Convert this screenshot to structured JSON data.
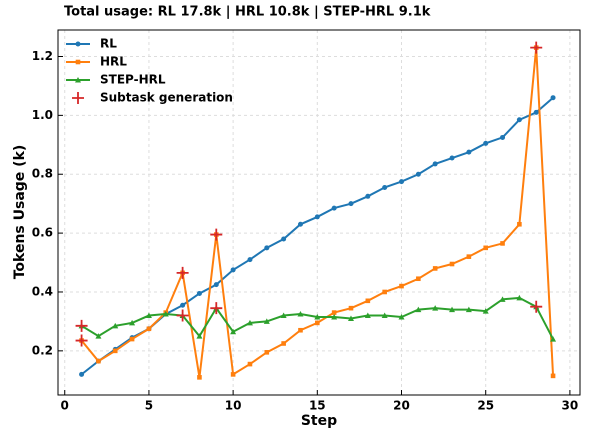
{
  "chart_data": {
    "type": "line",
    "title": "Total usage: RL 17.8k | HRL 10.8k | STEP-HRL 9.1k",
    "x_label": "Step",
    "y_label": "Tokens Usage (k)",
    "x": [
      1,
      2,
      3,
      4,
      5,
      6,
      7,
      8,
      9,
      10,
      11,
      12,
      13,
      14,
      15,
      16,
      17,
      18,
      19,
      20,
      21,
      22,
      23,
      24,
      25,
      26,
      27,
      28,
      29
    ],
    "series": [
      {
        "name": "RL",
        "color": "#1f77b4",
        "marker": "circle",
        "line": true,
        "values": [
          0.12,
          0.165,
          0.205,
          0.245,
          0.275,
          0.325,
          0.355,
          0.395,
          0.425,
          0.475,
          0.51,
          0.55,
          0.58,
          0.63,
          0.655,
          0.685,
          0.7,
          0.725,
          0.755,
          0.775,
          0.8,
          0.835,
          0.855,
          0.875,
          0.905,
          0.925,
          0.985,
          1.01,
          1.06
        ]
      },
      {
        "name": "HRL",
        "color": "#ff7f0e",
        "marker": "square",
        "line": true,
        "values": [
          0.235,
          0.165,
          0.2,
          0.24,
          0.275,
          0.33,
          0.465,
          0.11,
          0.595,
          0.12,
          0.155,
          0.195,
          0.225,
          0.27,
          0.295,
          0.33,
          0.345,
          0.37,
          0.4,
          0.42,
          0.445,
          0.48,
          0.495,
          0.52,
          0.55,
          0.565,
          0.63,
          1.23,
          0.115
        ]
      },
      {
        "name": "STEP-HRL",
        "color": "#2ca02c",
        "marker": "triangle",
        "line": true,
        "values": [
          0.285,
          0.25,
          0.285,
          0.295,
          0.32,
          0.325,
          0.32,
          0.25,
          0.345,
          0.265,
          0.295,
          0.3,
          0.32,
          0.325,
          0.315,
          0.315,
          0.31,
          0.32,
          0.32,
          0.315,
          0.34,
          0.345,
          0.34,
          0.34,
          0.335,
          0.375,
          0.38,
          0.35,
          0.24
        ]
      },
      {
        "name": "Subtask generation",
        "color": "#d62728",
        "marker": "plus",
        "line": false,
        "x": [
          1,
          1,
          7,
          7,
          9,
          9,
          28,
          28
        ],
        "values": [
          0.285,
          0.235,
          0.465,
          0.32,
          0.595,
          0.345,
          1.23,
          0.35
        ]
      }
    ],
    "xlim": [
      -0.4,
      30.6
    ],
    "ylim": [
      0.05,
      1.29
    ],
    "xticks": [
      0,
      5,
      10,
      15,
      20,
      25,
      30
    ],
    "yticks": [
      0.2,
      0.4,
      0.6,
      0.8,
      {
        "value": 1,
        "label": "1.0"
      },
      1.2
    ],
    "grid": true,
    "legend": "upper-left"
  }
}
